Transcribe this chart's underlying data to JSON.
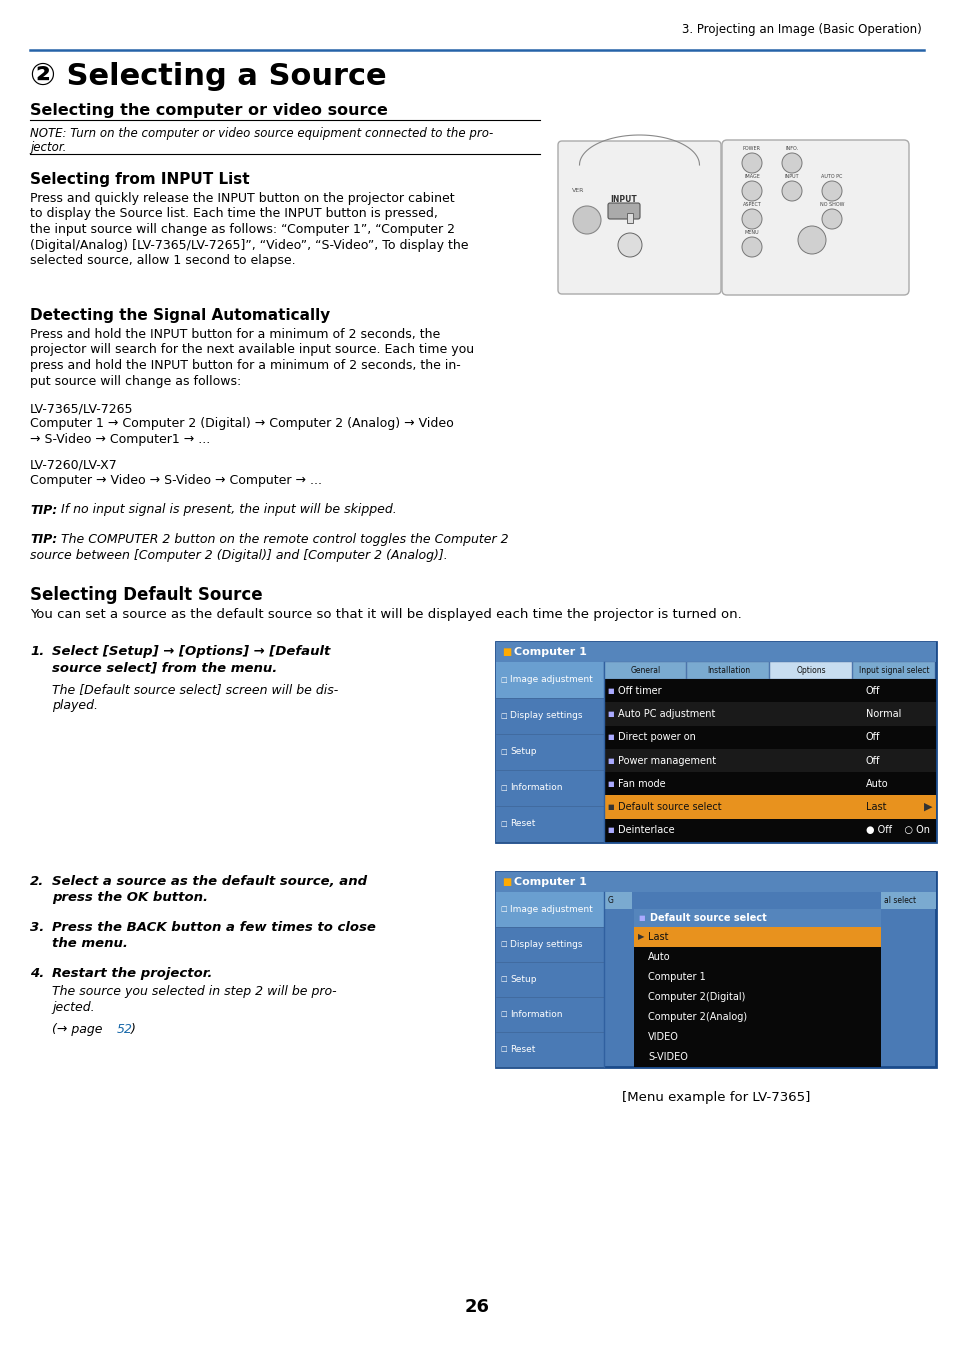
{
  "page_bg": "#ffffff",
  "header_line_color": "#2563a8",
  "header_text": "3. Projecting an Image (Basic Operation)",
  "main_title": "② Selecting a Source",
  "subtitle1": "Selecting the computer or video source",
  "note_line1": "NOTE: Turn on the computer or video source equipment connected to the pro-",
  "note_line2": "jector.",
  "section1_title": "Selecting from INPUT List",
  "section1_lines": [
    "Press and quickly release the INPUT button on the projector cabinet",
    "to display the Source list. Each time the INPUT button is pressed,",
    "the input source will change as follows: “Computer 1”, “Computer 2",
    "(Digital/Analog) [LV-7365/LV-7265]”, “Video”, “S-Video”, To display the",
    "selected source, allow 1 second to elapse."
  ],
  "section2_title": "Detecting the Signal Automatically",
  "section2_lines": [
    "Press and hold the INPUT button for a minimum of 2 seconds, the",
    "projector will search for the next available input source. Each time you",
    "press and hold the INPUT button for a minimum of 2 seconds, the in-",
    "put source will change as follows:"
  ],
  "lv1_label": "LV-7365/LV-7265",
  "lv1_line1": "Computer 1 → Computer 2 (Digital) → Computer 2 (Analog) → Video",
  "lv1_line2": "→ S-Video → Computer1 → ...",
  "lv2_label": "LV-7260/LV-X7",
  "lv2_line1": "Computer → Video → S-Video → Computer → ...",
  "tip1_bold": "TIP:",
  "tip1_text": " If no input signal is present, the input will be skipped.",
  "tip2_bold": "TIP:",
  "tip2_line1": " The COMPUTER 2 button on the remote control toggles the Computer 2",
  "tip2_line2": "source between [Computer 2 (Digital)] and [Computer 2 (Analog)].",
  "section3_title": "Selecting Default Source",
  "section3_body": "You can set a source as the default source so that it will be displayed each time the projector is turned on.",
  "menu_caption": "[Menu example for LV-7365]",
  "page_number": "26",
  "menu_bg": "#4a7ab5",
  "menu_sidebar_bg": "#4a7ab5",
  "menu_sidebar_highlight": "#6a9fd0",
  "menu_header_bg": "#5585bc",
  "menu_title": "Computer 1",
  "menu_tab_bg": "#7aaad0",
  "menu_tab_active_bg": "#c8ddf0",
  "menu_sidebar_items": [
    "Image adjustment",
    "Display settings",
    "Setup",
    "Information",
    "Reset"
  ],
  "menu_tabs": [
    "General",
    "Installation",
    "Options",
    "Input signal select"
  ],
  "menu_rows": [
    {
      "label": "Off timer",
      "value": "Off",
      "highlight": false
    },
    {
      "label": "Auto PC adjustment",
      "value": "Normal",
      "highlight": false
    },
    {
      "label": "Direct power on",
      "value": "Off",
      "highlight": false
    },
    {
      "label": "Power management",
      "value": "Off",
      "highlight": false
    },
    {
      "label": "Fan mode",
      "value": "Auto",
      "highlight": false
    },
    {
      "label": "Default source select",
      "value": "Last",
      "highlight": true
    },
    {
      "label": "Deinterlace",
      "value": "● Off    ○ On",
      "highlight": false
    }
  ],
  "menu2_title": "Computer 1",
  "menu2_header": "Default source select",
  "menu2_items": [
    "Last",
    "Auto",
    "Computer 1",
    "Computer 2(Digital)",
    "Computer 2(Analog)",
    "VIDEO",
    "S-VIDEO"
  ],
  "menu2_selected": "Last",
  "orange_color": "#e8921e",
  "row_dark": "#0a0a0a",
  "row_medium": "#1e1e1e",
  "link_color": "#1a6aaa"
}
